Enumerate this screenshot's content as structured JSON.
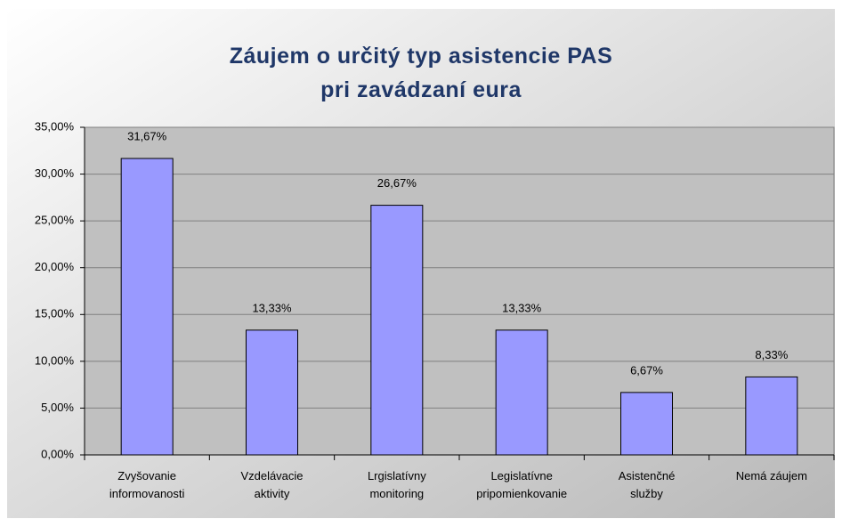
{
  "chart_data": {
    "type": "bar",
    "title": "Záujem o určitý typ asistencie PAS\npri zavádzaní eura",
    "categories": [
      "Zvyšovanie\ninformovanosti",
      "Vzdelávacie\naktivity",
      "Lrgislatívny\nmonitoring",
      "Legislatívne\npripomienkovanie",
      "Asistenčné\nslužby",
      "Nemá záujem"
    ],
    "values": [
      31.67,
      13.33,
      26.67,
      13.33,
      6.67,
      8.33
    ],
    "value_labels": [
      "31,67%",
      "13,33%",
      "26,67%",
      "13,33%",
      "6,67%",
      "8,33%"
    ],
    "color": "#9999ff",
    "ylim": [
      0,
      35
    ],
    "yticks": [
      {
        "value": 0,
        "label": "0,00%"
      },
      {
        "value": 5,
        "label": "5,00%"
      },
      {
        "value": 10,
        "label": "10,00%"
      },
      {
        "value": 15,
        "label": "15,00%"
      },
      {
        "value": 20,
        "label": "20,00%"
      },
      {
        "value": 25,
        "label": "25,00%"
      },
      {
        "value": 30,
        "label": "30,00%"
      },
      {
        "value": 35,
        "label": "35,00%"
      }
    ],
    "grid": true
  }
}
